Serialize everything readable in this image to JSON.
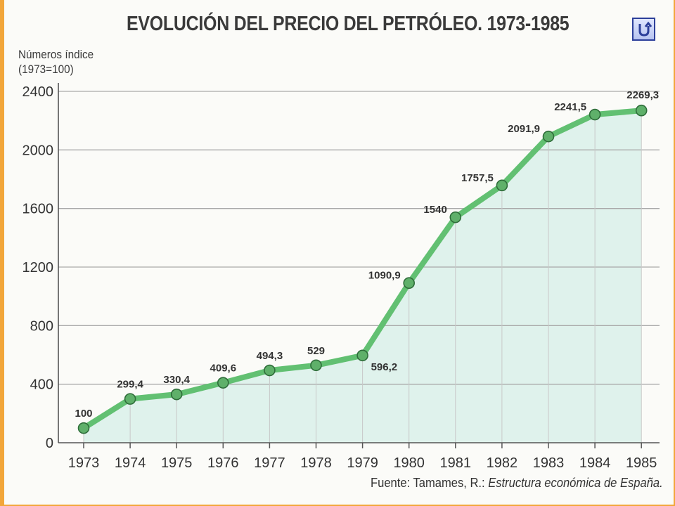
{
  "chart_data": {
    "type": "line",
    "title": "EVOLUCIÓN DEL PRECIO DEL PETRÓLEO. 1973-1985",
    "ylabel_line1": "Números índice",
    "ylabel_line2": "(1973=100)",
    "xlabel": "",
    "x": [
      "1973",
      "1974",
      "1975",
      "1976",
      "1977",
      "1978",
      "1979",
      "1980",
      "1981",
      "1982",
      "1983",
      "1984",
      "1985"
    ],
    "values": [
      100,
      299.4,
      330.4,
      409.6,
      494.3,
      529,
      596.2,
      1090.9,
      1540,
      1757.5,
      2091.9,
      2241.5,
      2269.3
    ],
    "data_labels": [
      "100",
      "299,4",
      "330,4",
      "409,6",
      "494,3",
      "529",
      "596,2",
      "1090,9",
      "1540",
      "1757,5",
      "2091,9",
      "2241,5",
      "2269,3"
    ],
    "yticks": [
      0,
      400,
      800,
      1200,
      1600,
      2000,
      2400
    ],
    "ylim": [
      0,
      2400
    ],
    "grid": true,
    "line_color": "#62c072",
    "marker_color": "#5fb06a",
    "fill_color": "#dff2ec",
    "source_prefix": "Fuente: Tamames, R.: ",
    "source_title": "Estructura económica de España."
  },
  "nav": {
    "back_icon": "return-arrow-icon"
  }
}
